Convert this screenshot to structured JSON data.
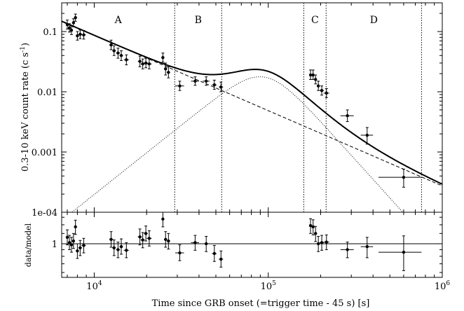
{
  "chart_data": [
    {
      "type": "scatter",
      "panel": "light-curve",
      "xlabel": "Time since GRB onset (=trigger time - 45 s) [s]",
      "ylabel": "0.3-10 keV count rate (c s",
      "ylabel_sup": "-1",
      "ylabel_tail": ")",
      "xscale": "log",
      "yscale": "log",
      "xlim": [
        6500,
        1000000
      ],
      "ylim": [
        0.0001,
        0.3
      ],
      "x_ticks": [
        {
          "value": 10000,
          "label": "10",
          "exp": "4"
        },
        {
          "value": 100000,
          "label": "10",
          "exp": "5"
        },
        {
          "value": 1000000,
          "label": "10",
          "exp": "6"
        }
      ],
      "y_ticks": [
        {
          "value": 0.1,
          "label": "0.1"
        },
        {
          "value": 0.01,
          "label": "0.01"
        },
        {
          "value": 0.001,
          "label": "0.001"
        },
        {
          "value": 0.0001,
          "label": "1e-04"
        }
      ],
      "intervals": [
        {
          "label": "A",
          "from": 6500,
          "to": 29000
        },
        {
          "label": "B",
          "from": 29000,
          "to": 54000
        },
        {
          "label": "C",
          "from": 160000,
          "to": 215000
        },
        {
          "label": "D",
          "from": 215000,
          "to": 760000
        }
      ],
      "boundaries": [
        29000,
        54000,
        160000,
        215000,
        760000
      ],
      "points": [
        {
          "x": 7000,
          "y": 0.13,
          "xerr": 120,
          "ylo": 0.11,
          "yhi": 0.155
        },
        {
          "x": 7200,
          "y": 0.115,
          "xerr": 120,
          "ylo": 0.098,
          "yhi": 0.135
        },
        {
          "x": 7400,
          "y": 0.105,
          "xerr": 120,
          "ylo": 0.089,
          "yhi": 0.124
        },
        {
          "x": 7600,
          "y": 0.14,
          "xerr": 120,
          "ylo": 0.12,
          "yhi": 0.163
        },
        {
          "x": 7800,
          "y": 0.17,
          "xerr": 120,
          "ylo": 0.148,
          "yhi": 0.195
        },
        {
          "x": 8000,
          "y": 0.085,
          "xerr": 150,
          "ylo": 0.072,
          "yhi": 0.1
        },
        {
          "x": 8300,
          "y": 0.09,
          "xerr": 200,
          "ylo": 0.076,
          "yhi": 0.106
        },
        {
          "x": 8700,
          "y": 0.088,
          "xerr": 250,
          "ylo": 0.075,
          "yhi": 0.104
        },
        {
          "x": 12500,
          "y": 0.06,
          "xerr": 300,
          "ylo": 0.05,
          "yhi": 0.072
        },
        {
          "x": 13000,
          "y": 0.048,
          "xerr": 300,
          "ylo": 0.04,
          "yhi": 0.058
        },
        {
          "x": 13700,
          "y": 0.044,
          "xerr": 350,
          "ylo": 0.036,
          "yhi": 0.053
        },
        {
          "x": 14300,
          "y": 0.04,
          "xerr": 350,
          "ylo": 0.033,
          "yhi": 0.048
        },
        {
          "x": 15300,
          "y": 0.034,
          "xerr": 500,
          "ylo": 0.028,
          "yhi": 0.041
        },
        {
          "x": 18300,
          "y": 0.032,
          "xerr": 500,
          "ylo": 0.026,
          "yhi": 0.039
        },
        {
          "x": 19000,
          "y": 0.029,
          "xerr": 500,
          "ylo": 0.024,
          "yhi": 0.035
        },
        {
          "x": 19800,
          "y": 0.03,
          "xerr": 500,
          "ylo": 0.025,
          "yhi": 0.036
        },
        {
          "x": 20700,
          "y": 0.029,
          "xerr": 700,
          "ylo": 0.024,
          "yhi": 0.035
        },
        {
          "x": 24800,
          "y": 0.037,
          "xerr": 300,
          "ylo": 0.031,
          "yhi": 0.044
        },
        {
          "x": 25700,
          "y": 0.024,
          "xerr": 500,
          "ylo": 0.019,
          "yhi": 0.03
        },
        {
          "x": 26700,
          "y": 0.021,
          "xerr": 600,
          "ylo": 0.017,
          "yhi": 0.026
        },
        {
          "x": 31000,
          "y": 0.0125,
          "xerr": 1800,
          "ylo": 0.0105,
          "yhi": 0.015
        },
        {
          "x": 38000,
          "y": 0.015,
          "xerr": 2000,
          "ylo": 0.0128,
          "yhi": 0.0177
        },
        {
          "x": 44000,
          "y": 0.015,
          "xerr": 2000,
          "ylo": 0.0128,
          "yhi": 0.0177
        },
        {
          "x": 49000,
          "y": 0.013,
          "xerr": 1500,
          "ylo": 0.011,
          "yhi": 0.0156
        },
        {
          "x": 53500,
          "y": 0.012,
          "xerr": 1500,
          "ylo": 0.01,
          "yhi": 0.0145
        },
        {
          "x": 175000,
          "y": 0.019,
          "xerr": 3000,
          "ylo": 0.016,
          "yhi": 0.023
        },
        {
          "x": 181000,
          "y": 0.019,
          "xerr": 3000,
          "ylo": 0.016,
          "yhi": 0.023
        },
        {
          "x": 187000,
          "y": 0.016,
          "xerr": 3000,
          "ylo": 0.0135,
          "yhi": 0.019
        },
        {
          "x": 194000,
          "y": 0.0125,
          "xerr": 3500,
          "ylo": 0.0105,
          "yhi": 0.015
        },
        {
          "x": 203000,
          "y": 0.0105,
          "xerr": 6000,
          "ylo": 0.0088,
          "yhi": 0.0125
        },
        {
          "x": 216000,
          "y": 0.0095,
          "xerr": 8000,
          "ylo": 0.008,
          "yhi": 0.0113
        },
        {
          "x": 285000,
          "y": 0.004,
          "xerr": 25000,
          "ylo": 0.0032,
          "yhi": 0.005
        },
        {
          "x": 370000,
          "y": 0.0019,
          "xerr": 30000,
          "ylo": 0.00135,
          "yhi": 0.00255
        },
        {
          "x": 600000,
          "y": 0.00038,
          "xerr_lo": 170000,
          "xerr_hi": 160000,
          "ylo": 0.00026,
          "yhi": 0.00052
        }
      ],
      "models": [
        {
          "style": "solid",
          "description_hidden": true
        },
        {
          "style": "dashed",
          "description_hidden": true
        },
        {
          "style": "dotted",
          "description_hidden": true
        }
      ]
    },
    {
      "type": "scatter",
      "panel": "residuals",
      "ylabel": "data/model",
      "xscale": "log",
      "yscale": "log",
      "xlim": [
        6500,
        1000000
      ],
      "ylim": [
        0.55,
        1.75
      ],
      "y_ticks": [
        {
          "value": 1,
          "label": "1"
        }
      ],
      "reference_line": 1,
      "points": [
        {
          "x": 7000,
          "y": 1.12,
          "xerr": 120,
          "ylo": 0.98,
          "yhi": 1.28
        },
        {
          "x": 7200,
          "y": 1.02,
          "xerr": 120,
          "ylo": 0.9,
          "yhi": 1.16
        },
        {
          "x": 7400,
          "y": 0.98,
          "xerr": 120,
          "ylo": 0.86,
          "yhi": 1.12
        },
        {
          "x": 7600,
          "y": 1.05,
          "xerr": 120,
          "ylo": 0.92,
          "yhi": 1.2
        },
        {
          "x": 7800,
          "y": 1.35,
          "xerr": 120,
          "ylo": 1.18,
          "yhi": 1.52
        },
        {
          "x": 8000,
          "y": 0.88,
          "xerr": 150,
          "ylo": 0.77,
          "yhi": 1.0
        },
        {
          "x": 8300,
          "y": 0.93,
          "xerr": 200,
          "ylo": 0.81,
          "yhi": 1.06
        },
        {
          "x": 8700,
          "y": 0.97,
          "xerr": 250,
          "ylo": 0.85,
          "yhi": 1.1
        },
        {
          "x": 12500,
          "y": 1.08,
          "xerr": 300,
          "ylo": 0.94,
          "yhi": 1.24
        },
        {
          "x": 13000,
          "y": 0.93,
          "xerr": 300,
          "ylo": 0.81,
          "yhi": 1.07
        },
        {
          "x": 13700,
          "y": 0.9,
          "xerr": 350,
          "ylo": 0.78,
          "yhi": 1.03
        },
        {
          "x": 14300,
          "y": 0.95,
          "xerr": 350,
          "ylo": 0.83,
          "yhi": 1.09
        },
        {
          "x": 15300,
          "y": 0.89,
          "xerr": 500,
          "ylo": 0.78,
          "yhi": 1.02
        },
        {
          "x": 18300,
          "y": 1.13,
          "xerr": 500,
          "ylo": 0.98,
          "yhi": 1.3
        },
        {
          "x": 19000,
          "y": 1.07,
          "xerr": 500,
          "ylo": 0.93,
          "yhi": 1.22
        },
        {
          "x": 19800,
          "y": 1.2,
          "xerr": 500,
          "ylo": 1.05,
          "yhi": 1.37
        },
        {
          "x": 20700,
          "y": 1.1,
          "xerr": 700,
          "ylo": 0.96,
          "yhi": 1.26
        },
        {
          "x": 24800,
          "y": 1.55,
          "xerr": 300,
          "ylo": 1.35,
          "yhi": 1.75
        },
        {
          "x": 25700,
          "y": 1.08,
          "xerr": 500,
          "ylo": 0.94,
          "yhi": 1.24
        },
        {
          "x": 26700,
          "y": 1.05,
          "xerr": 600,
          "ylo": 0.91,
          "yhi": 1.2
        },
        {
          "x": 31000,
          "y": 0.85,
          "xerr": 1800,
          "ylo": 0.74,
          "yhi": 0.98
        },
        {
          "x": 38000,
          "y": 1.02,
          "xerr": 2000,
          "ylo": 0.89,
          "yhi": 1.16
        },
        {
          "x": 44000,
          "y": 1.0,
          "xerr": 2000,
          "ylo": 0.87,
          "yhi": 1.14
        },
        {
          "x": 49000,
          "y": 0.84,
          "xerr": 1500,
          "ylo": 0.73,
          "yhi": 0.97
        },
        {
          "x": 53500,
          "y": 0.76,
          "xerr": 1500,
          "ylo": 0.66,
          "yhi": 0.88
        },
        {
          "x": 175000,
          "y": 1.38,
          "xerr": 3000,
          "ylo": 1.2,
          "yhi": 1.56
        },
        {
          "x": 181000,
          "y": 1.35,
          "xerr": 3000,
          "ylo": 1.17,
          "yhi": 1.53
        },
        {
          "x": 187000,
          "y": 1.2,
          "xerr": 3000,
          "ylo": 1.04,
          "yhi": 1.36
        },
        {
          "x": 194000,
          "y": 1.0,
          "xerr": 3500,
          "ylo": 0.87,
          "yhi": 1.14
        },
        {
          "x": 203000,
          "y": 1.02,
          "xerr": 6000,
          "ylo": 0.89,
          "yhi": 1.16
        },
        {
          "x": 216000,
          "y": 1.03,
          "xerr": 8000,
          "ylo": 0.9,
          "yhi": 1.17
        },
        {
          "x": 285000,
          "y": 0.9,
          "xerr": 25000,
          "ylo": 0.78,
          "yhi": 1.03
        },
        {
          "x": 370000,
          "y": 0.95,
          "xerr": 30000,
          "ylo": 0.78,
          "yhi": 1.12
        },
        {
          "x": 600000,
          "y": 0.86,
          "xerr_lo": 170000,
          "xerr_hi": 160000,
          "ylo": 0.62,
          "yhi": 1.15
        }
      ]
    }
  ]
}
